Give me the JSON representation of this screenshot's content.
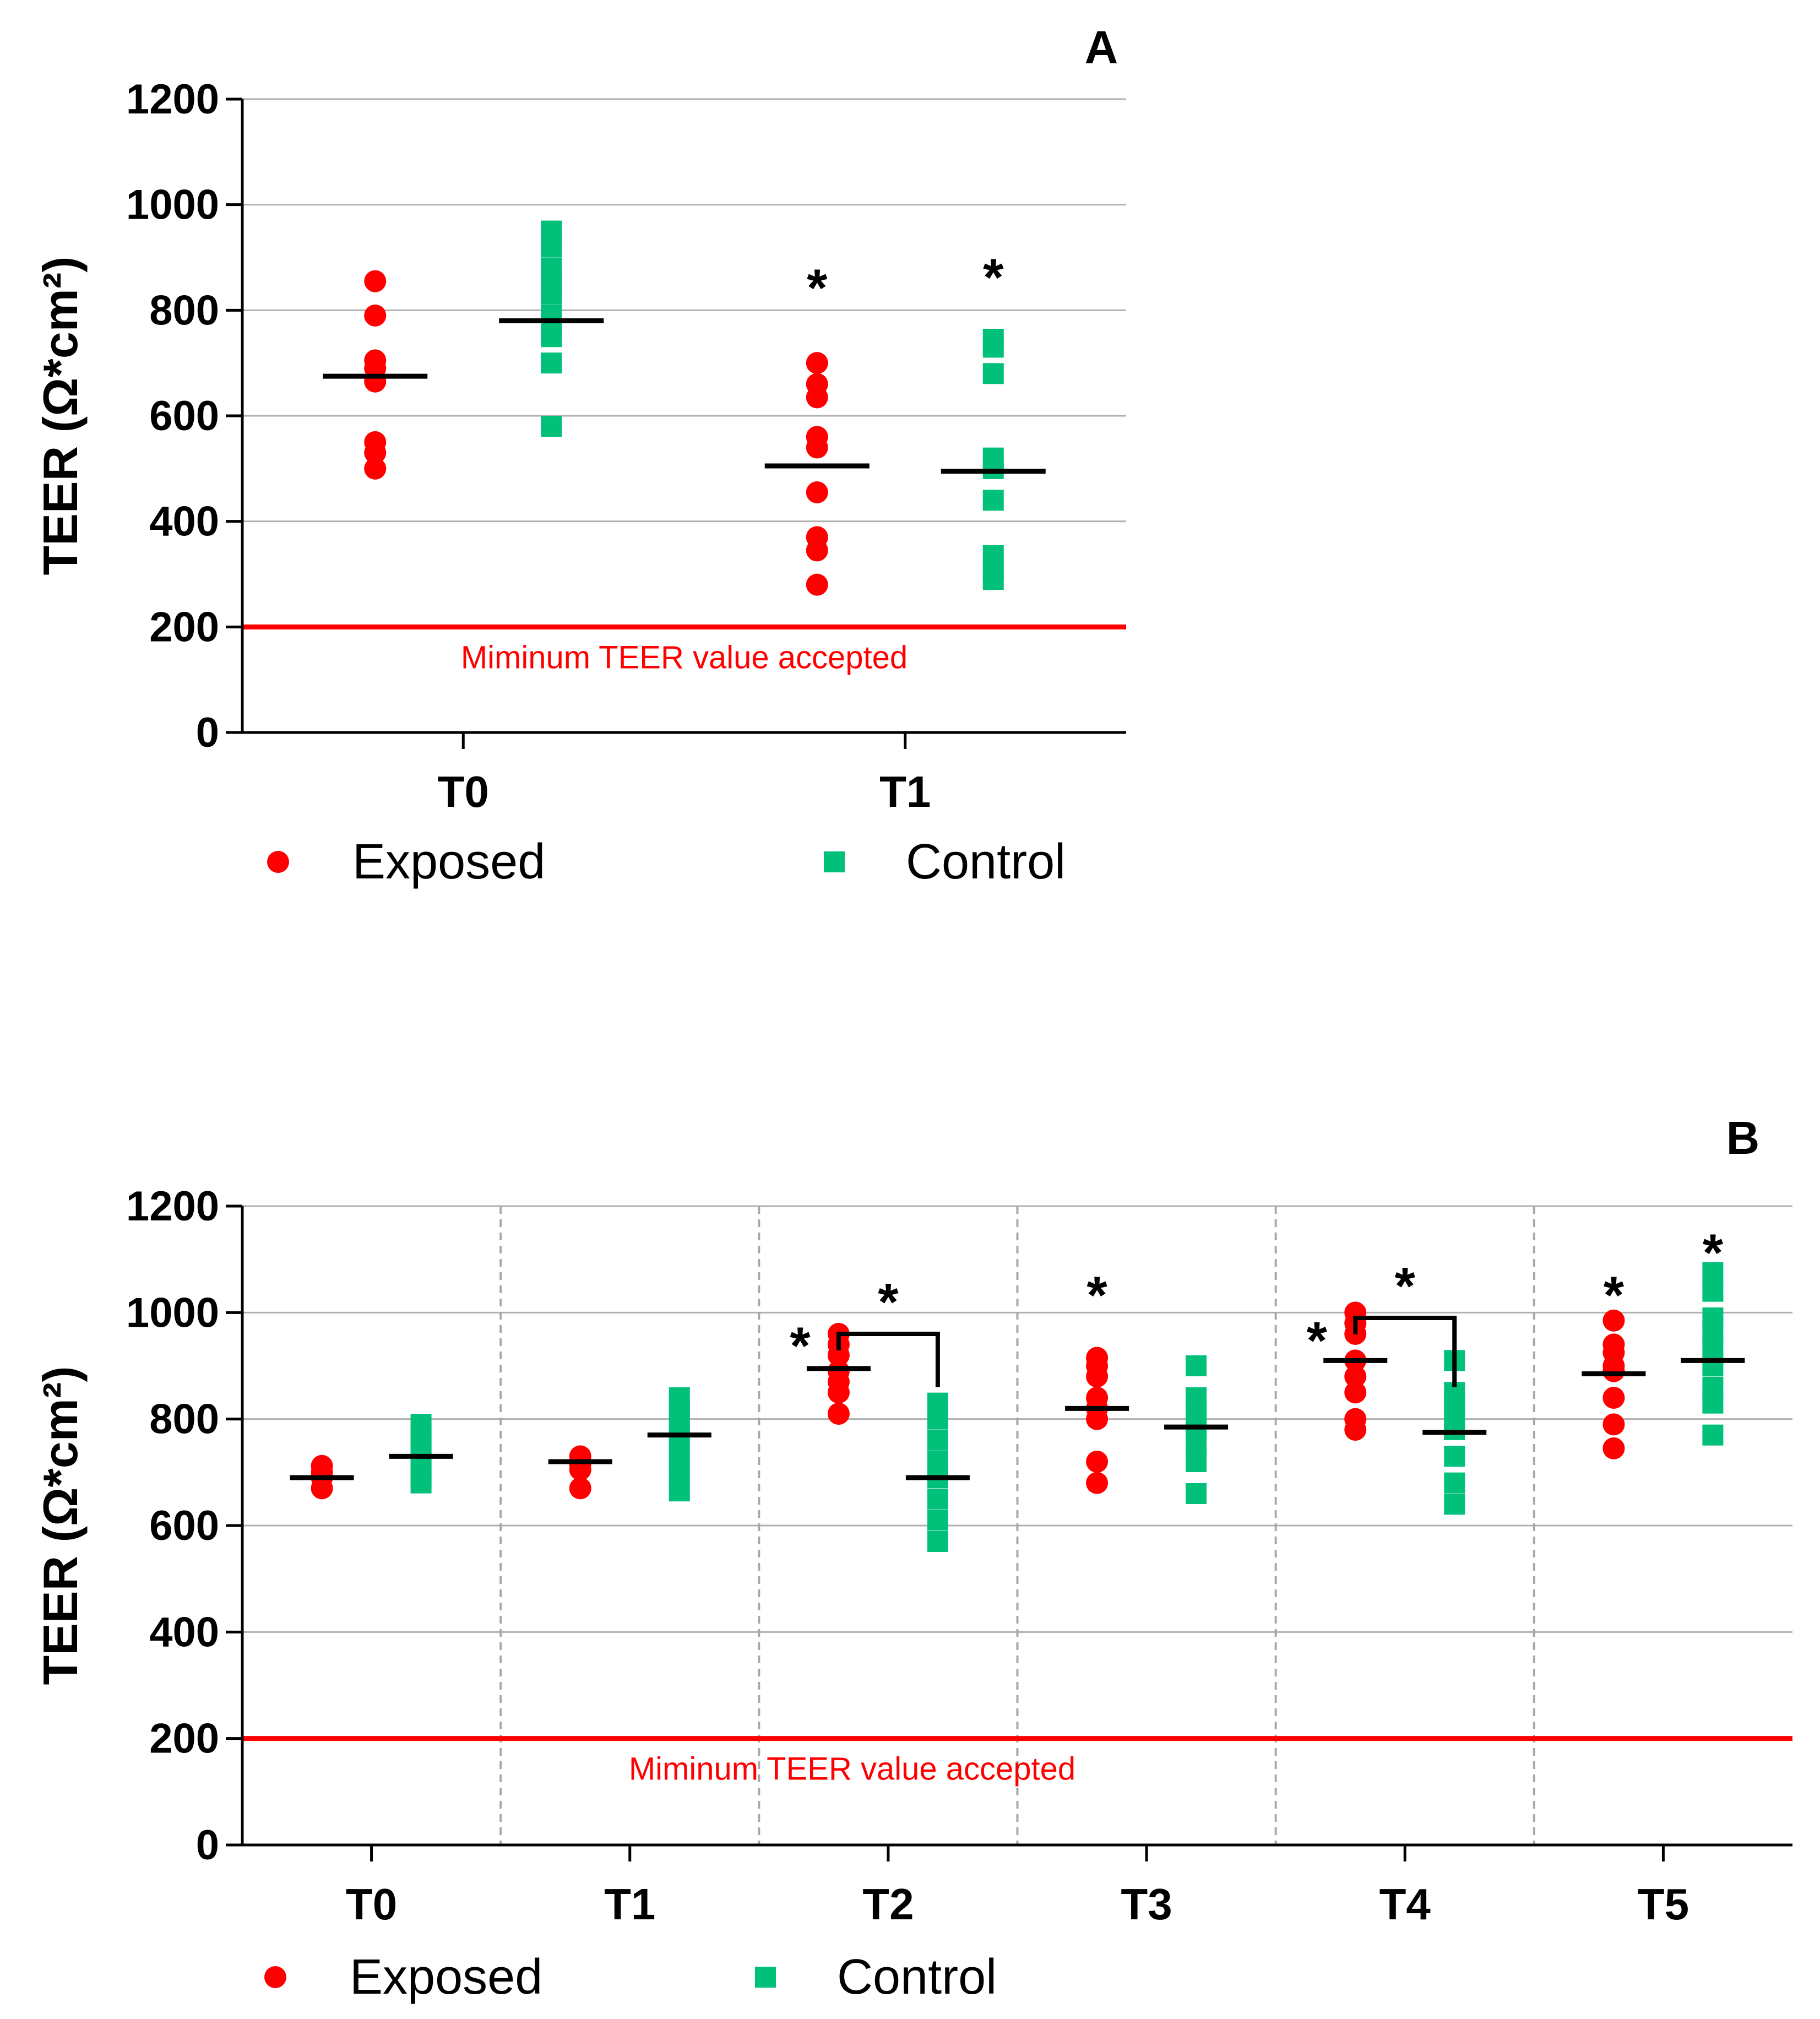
{
  "chart_data": [
    {
      "type": "scatter",
      "panel_label": "A",
      "ylabel": "TEER (Ω*cm²)",
      "ylim": [
        0,
        1200
      ],
      "yticks": [
        0,
        200,
        400,
        600,
        800,
        1000,
        1200
      ],
      "grid": true,
      "categories": [
        "T0",
        "T1"
      ],
      "threshold": {
        "value": 200,
        "label": "Miminum TEER value accepted",
        "color": "#ff0000"
      },
      "series": [
        {
          "name": "Exposed",
          "marker": "circle",
          "color": "#ff0000",
          "points": [
            [
              855,
              790,
              705,
              690,
              665,
              550,
              530,
              500
            ],
            [
              700,
              660,
              635,
              560,
              540,
              455,
              370,
              345,
              280
            ]
          ],
          "means": [
            675,
            505
          ]
        },
        {
          "name": "Control",
          "marker": "square",
          "color": "#00c07a",
          "points": [
            [
              950,
              920,
              880,
              850,
              830,
              790,
              770,
              750,
              700,
              580
            ],
            [
              745,
              730,
              680,
              520,
              500,
              440,
              335,
              310,
              290
            ]
          ],
          "means": [
            780,
            495
          ]
        }
      ],
      "annotations": [
        {
          "text": "*",
          "category": "T1",
          "series": "Exposed",
          "y": 850
        },
        {
          "text": "*",
          "category": "T1",
          "series": "Control",
          "y": 870
        }
      ],
      "legend": {
        "position": "bottom",
        "entries": [
          "Exposed",
          "Control"
        ]
      }
    },
    {
      "type": "scatter",
      "panel_label": "B",
      "ylabel": "TEER (Ω*cm²)",
      "ylim": [
        0,
        1200
      ],
      "yticks": [
        0,
        200,
        400,
        600,
        800,
        1000,
        1200
      ],
      "grid": true,
      "categories": [
        "T0",
        "T1",
        "T2",
        "T3",
        "T4",
        "T5"
      ],
      "threshold": {
        "value": 200,
        "label": "Miminum TEER value accepted",
        "color": "#ff0000"
      },
      "series": [
        {
          "name": "Exposed",
          "marker": "circle",
          "color": "#ff0000",
          "points": [
            [
              712,
              700,
              690,
              670
            ],
            [
              730,
              715,
              705,
              670
            ],
            [
              960,
              940,
              920,
              890,
              870,
              850,
              810
            ],
            [
              915,
              900,
              880,
              840,
              820,
              800,
              720,
              680
            ],
            [
              1000,
              980,
              960,
              910,
              880,
              850,
              800,
              780
            ],
            [
              985,
              940,
              925,
              900,
              890,
              840,
              790,
              745
            ]
          ],
          "means": [
            690,
            720,
            895,
            820,
            910,
            885
          ]
        },
        {
          "name": "Control",
          "marker": "square",
          "color": "#00c07a",
          "points": [
            [
              790,
              770,
              750,
              730,
              710,
              690,
              680
            ],
            [
              840,
              820,
              800,
              780,
              760,
              730,
              700,
              665
            ],
            [
              830,
              800,
              760,
              720,
              690,
              650,
              610,
              570
            ],
            [
              900,
              840,
              820,
              800,
              780,
              750,
              720,
              660
            ],
            [
              910,
              850,
              830,
              800,
              780,
              730,
              680,
              640
            ],
            [
              1075,
              1040,
              990,
              960,
              930,
              900,
              860,
              830,
              770
            ]
          ],
          "means": [
            730,
            770,
            690,
            785,
            775,
            910
          ]
        }
      ],
      "annotations": [
        {
          "text": "*",
          "category": "T2",
          "series": "Exposed",
          "y": 945,
          "side": "left"
        },
        {
          "text": "*",
          "category": "T3",
          "series": "Exposed",
          "y": 1040
        },
        {
          "text": "*",
          "category": "T4",
          "series": "Exposed",
          "y": 955,
          "side": "left"
        },
        {
          "text": "*",
          "category": "T5",
          "series": "Exposed",
          "y": 1040
        },
        {
          "text": "*",
          "category": "T5",
          "series": "Control",
          "y": 1120
        }
      ],
      "brackets": [
        {
          "category": "T2",
          "y": 960,
          "drop_to": 860,
          "label": "*"
        },
        {
          "category": "T4",
          "y": 990,
          "drop_to": 860,
          "label": "*"
        }
      ],
      "legend": {
        "position": "bottom",
        "entries": [
          "Exposed",
          "Control"
        ]
      }
    }
  ]
}
